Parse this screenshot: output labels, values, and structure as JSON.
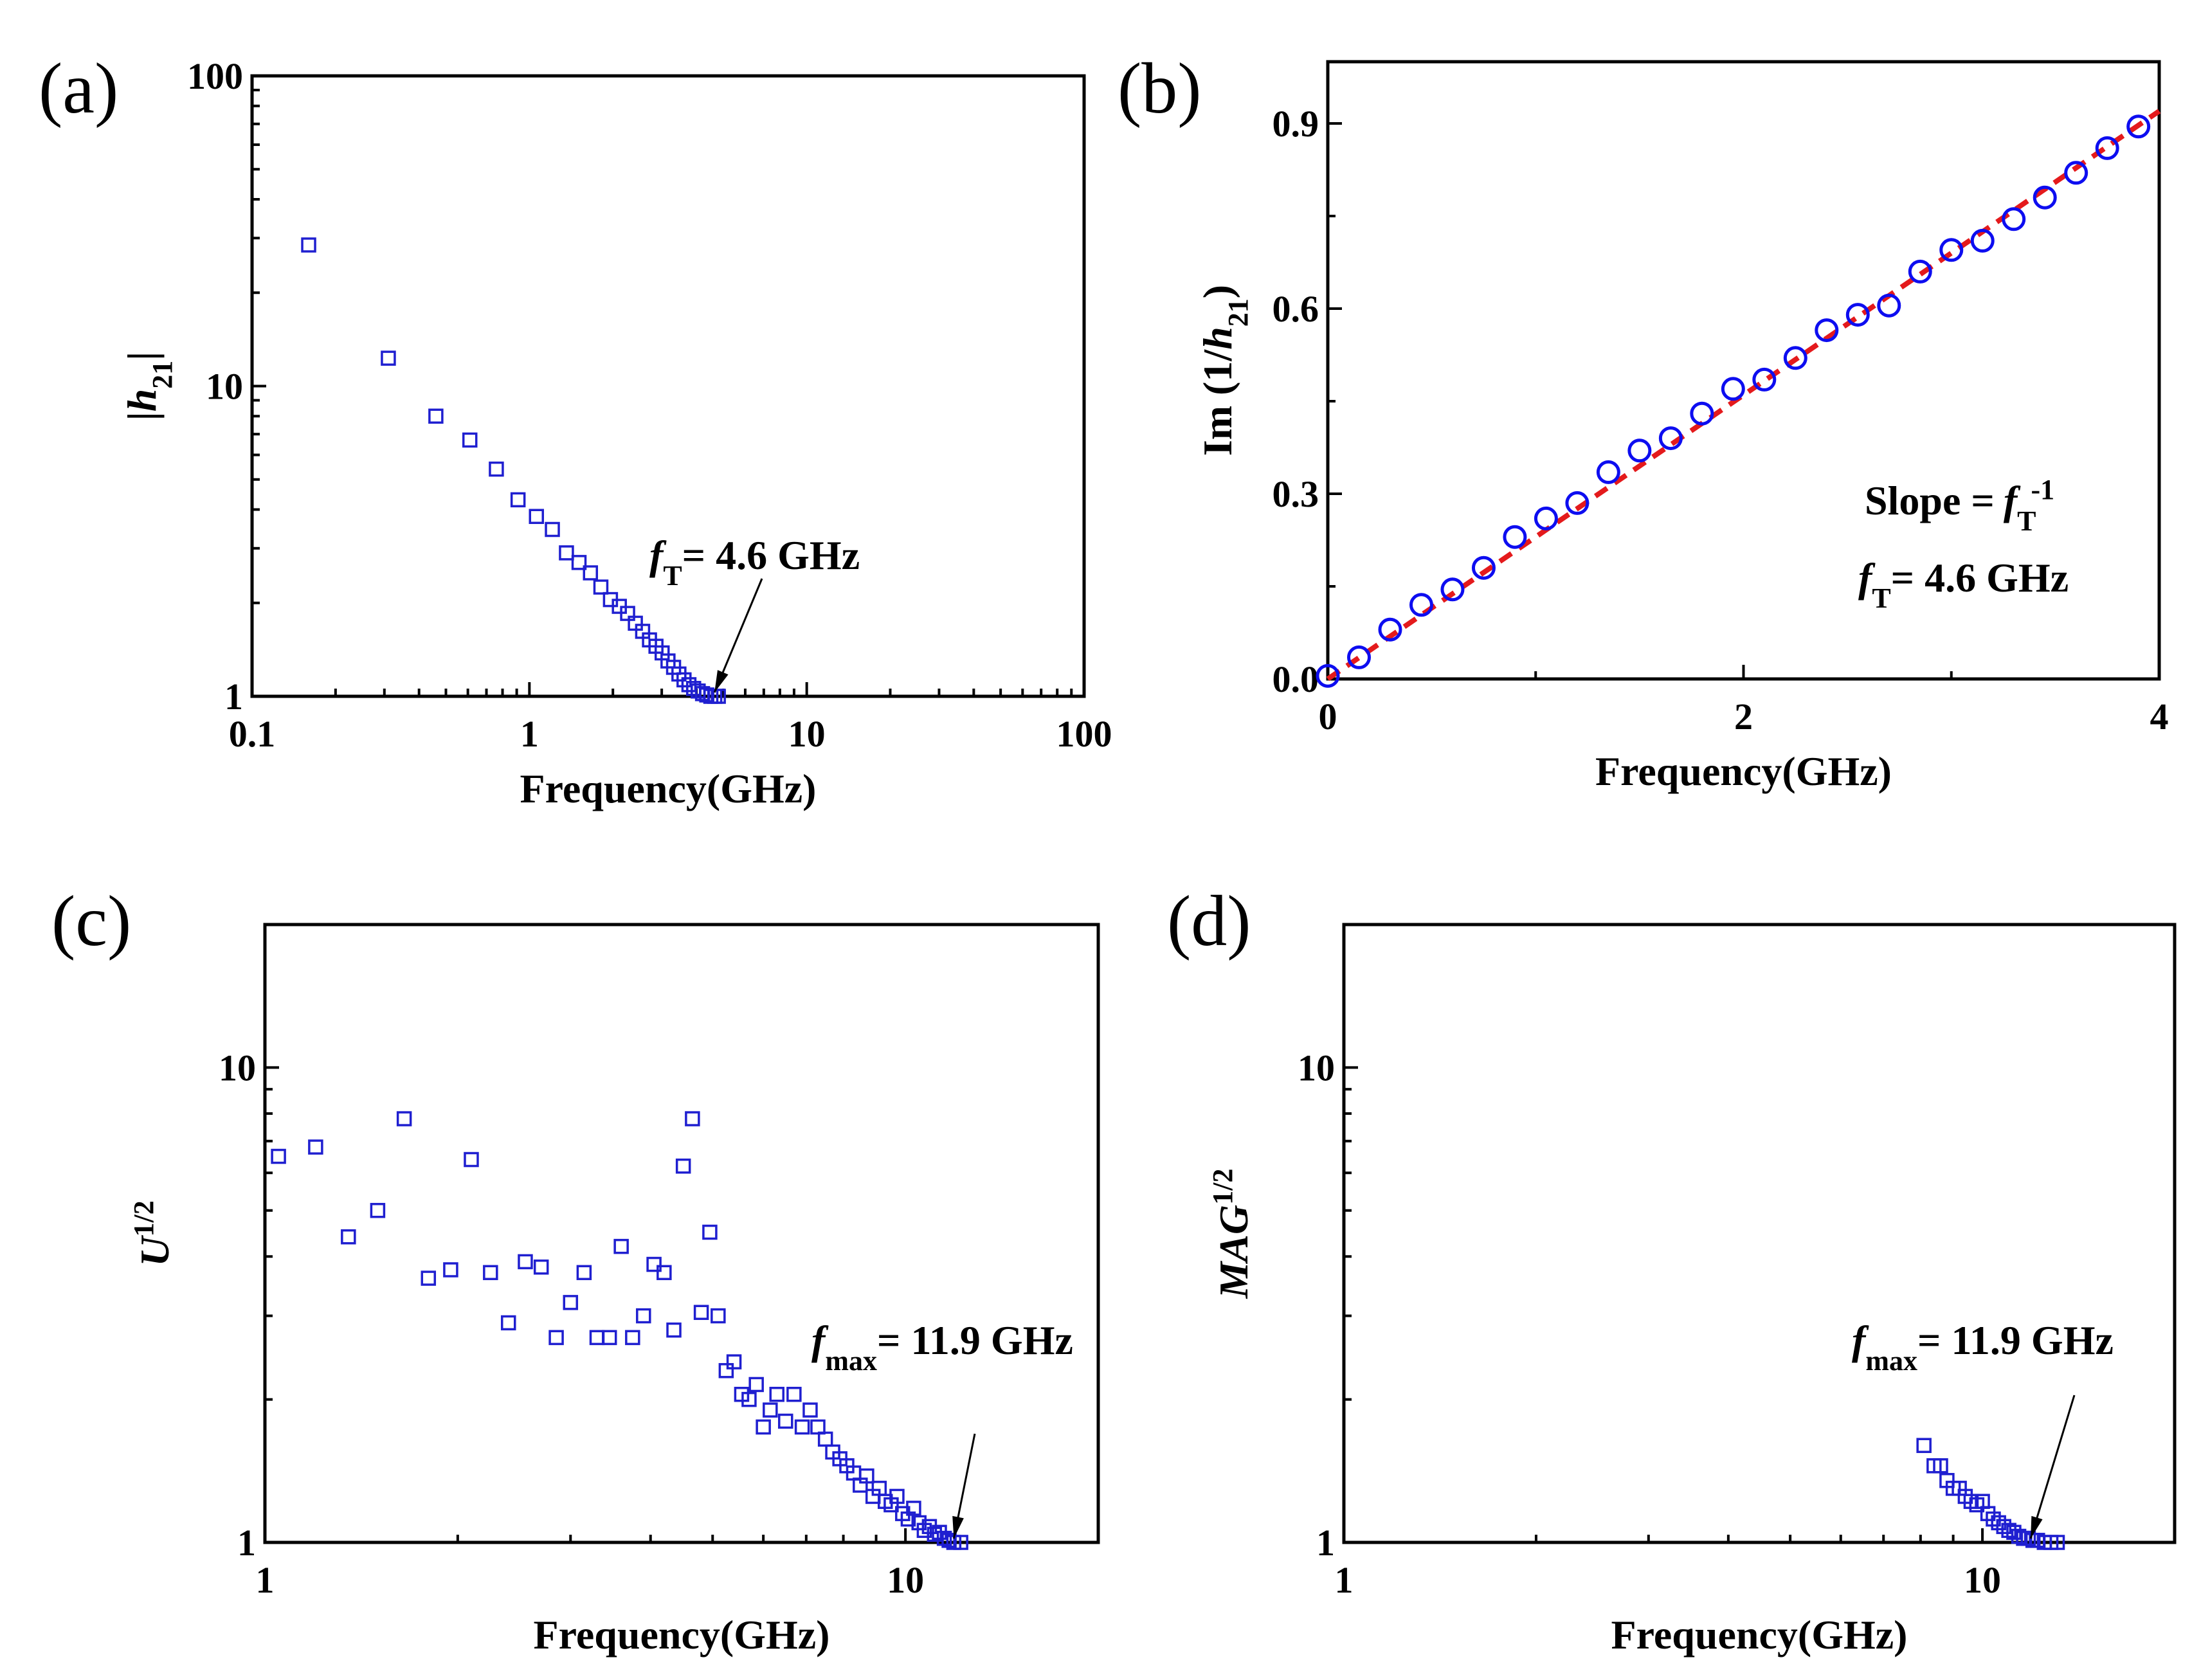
{
  "chart_data": [
    {
      "panel": "(a)",
      "type": "scatter",
      "xscale": "log",
      "yscale": "log",
      "xlim": [
        0.1,
        100
      ],
      "ylim": [
        1,
        100
      ],
      "xticks": [
        "0.1",
        "1",
        "10",
        "100"
      ],
      "yticks": [
        "1",
        "10",
        "100"
      ],
      "xlabel": "Frequency(GHz)",
      "ylabel_main": "|h",
      "ylabel_sub": "21",
      "ylabel_end": "|",
      "annotation": {
        "f": "f",
        "sub": "T",
        "text": "= 4.6 GHz",
        "arrow_to": [
          4.6,
          1.0
        ]
      },
      "marker": "square",
      "x": [
        0.16,
        0.31,
        0.46,
        0.61,
        0.76,
        0.91,
        1.06,
        1.21,
        1.36,
        1.51,
        1.66,
        1.81,
        1.96,
        2.11,
        2.26,
        2.41,
        2.56,
        2.71,
        2.86,
        3.01,
        3.16,
        3.31,
        3.46,
        3.61,
        3.76,
        3.91,
        4.06,
        4.21,
        4.36,
        4.51,
        4.66,
        4.8
      ],
      "y": [
        28.5,
        12.3,
        8.0,
        6.7,
        5.4,
        4.3,
        3.8,
        3.45,
        2.9,
        2.7,
        2.5,
        2.25,
        2.05,
        1.95,
        1.85,
        1.72,
        1.62,
        1.52,
        1.45,
        1.38,
        1.3,
        1.24,
        1.18,
        1.13,
        1.09,
        1.06,
        1.04,
        1.02,
        1.01,
        1.0,
        1.0,
        1.0
      ]
    },
    {
      "panel": "(b)",
      "type": "scatter",
      "xscale": "linear",
      "yscale": "linear",
      "xlim": [
        0,
        4
      ],
      "ylim": [
        0,
        1.0
      ],
      "xticks": [
        "0",
        "2",
        "4"
      ],
      "yticks": [
        "0.0",
        "0.3",
        "0.6",
        "0.9"
      ],
      "xlabel": "Frequency(GHz)",
      "ylabel_main": "Im (1/h",
      "ylabel_sub": "21",
      "ylabel_end": ")",
      "annotation_slope": {
        "label": "Slope  =",
        "f": "f",
        "sub": "T",
        "sup": "-1"
      },
      "annotation_ft": {
        "f": "f",
        "sub": "T",
        "text": "= 4.6 GHz"
      },
      "marker": "circle",
      "x": [
        0.0,
        0.15,
        0.3,
        0.45,
        0.6,
        0.75,
        0.9,
        1.05,
        1.2,
        1.35,
        1.5,
        1.65,
        1.8,
        1.95,
        2.1,
        2.25,
        2.4,
        2.55,
        2.7,
        2.85,
        3.0,
        3.15,
        3.3,
        3.45,
        3.6,
        3.75,
        3.9
      ],
      "y": [
        0.005,
        0.035,
        0.08,
        0.12,
        0.145,
        0.18,
        0.23,
        0.26,
        0.285,
        0.335,
        0.37,
        0.39,
        0.43,
        0.47,
        0.485,
        0.52,
        0.565,
        0.59,
        0.605,
        0.66,
        0.695,
        0.71,
        0.745,
        0.78,
        0.82,
        0.86,
        0.895
      ],
      "fit": {
        "x": [
          0,
          4
        ],
        "y": [
          0,
          0.92
        ],
        "style": "red dashed"
      }
    },
    {
      "panel": "(c)",
      "type": "scatter",
      "xscale": "log",
      "yscale": "log",
      "xlim": [
        1,
        20
      ],
      "ylim": [
        1,
        20
      ],
      "xticks": [
        "1",
        "10"
      ],
      "yticks": [
        "1",
        "10"
      ],
      "xlabel": "Frequency(GHz)",
      "ylabel_main": "U",
      "ylabel_sup": "1/2",
      "annotation": {
        "f": "f",
        "sub": "max",
        "text": "= 11.9 GHz",
        "arrow_to": [
          11.9,
          1.0
        ]
      },
      "marker": "square",
      "x": [
        1.05,
        1.2,
        1.35,
        1.5,
        1.65,
        1.8,
        1.95,
        2.1,
        2.25,
        2.4,
        2.55,
        2.7,
        2.85,
        3.0,
        3.15,
        3.3,
        3.45,
        3.6,
        3.75,
        3.9,
        4.05,
        4.2,
        4.35,
        4.5,
        4.65,
        4.8,
        4.95,
        5.1,
        5.25,
        5.4,
        5.55,
        5.7,
        5.85,
        6.0,
        6.15,
        6.3,
        6.5,
        6.7,
        6.9,
        7.1,
        7.3,
        7.5,
        7.7,
        7.9,
        8.1,
        8.3,
        8.5,
        8.7,
        8.9,
        9.1,
        9.3,
        9.5,
        9.7,
        9.9,
        10.1,
        10.3,
        10.5,
        10.7,
        10.9,
        11.1,
        11.3,
        11.5,
        11.7,
        11.9,
        12.2
      ],
      "y": [
        6.5,
        6.8,
        4.4,
        5.0,
        7.8,
        3.6,
        3.75,
        6.4,
        3.7,
        2.9,
        3.9,
        3.8,
        2.7,
        3.2,
        3.7,
        2.7,
        2.7,
        4.2,
        2.7,
        3.0,
        3.85,
        3.7,
        2.8,
        6.2,
        7.8,
        3.05,
        4.5,
        3.0,
        2.3,
        2.4,
        2.05,
        2.0,
        2.15,
        1.75,
        1.9,
        2.05,
        1.8,
        2.05,
        1.75,
        1.9,
        1.75,
        1.65,
        1.55,
        1.5,
        1.45,
        1.4,
        1.32,
        1.38,
        1.25,
        1.3,
        1.22,
        1.2,
        1.25,
        1.15,
        1.12,
        1.18,
        1.1,
        1.06,
        1.08,
        1.04,
        1.05,
        1.02,
        1.01,
        1.0,
        1.0
      ]
    },
    {
      "panel": "(d)",
      "type": "scatter",
      "xscale": "log",
      "yscale": "log",
      "xlim": [
        1,
        20
      ],
      "ylim": [
        1,
        20
      ],
      "xticks": [
        "1",
        "10"
      ],
      "yticks": [
        "1",
        "10"
      ],
      "xlabel": "Frequency(GHz)",
      "ylabel_main": "MAG",
      "ylabel_sup": "1/2",
      "annotation": {
        "f": "f",
        "sub": "max",
        "text": "= 11.9 GHz",
        "arrow_to": [
          11.9,
          1.0
        ]
      },
      "marker": "square",
      "x": [
        8.1,
        8.4,
        8.6,
        8.8,
        9.0,
        9.2,
        9.4,
        9.6,
        9.8,
        10.0,
        10.2,
        10.4,
        10.6,
        10.8,
        11.0,
        11.2,
        11.4,
        11.6,
        11.8,
        12.0,
        12.2,
        12.5,
        12.8,
        13.1
      ],
      "y": [
        1.6,
        1.45,
        1.45,
        1.35,
        1.3,
        1.3,
        1.25,
        1.22,
        1.2,
        1.22,
        1.15,
        1.12,
        1.1,
        1.08,
        1.06,
        1.05,
        1.03,
        1.02,
        1.02,
        1.01,
        1.01,
        1.0,
        1.0,
        1.0
      ]
    }
  ]
}
